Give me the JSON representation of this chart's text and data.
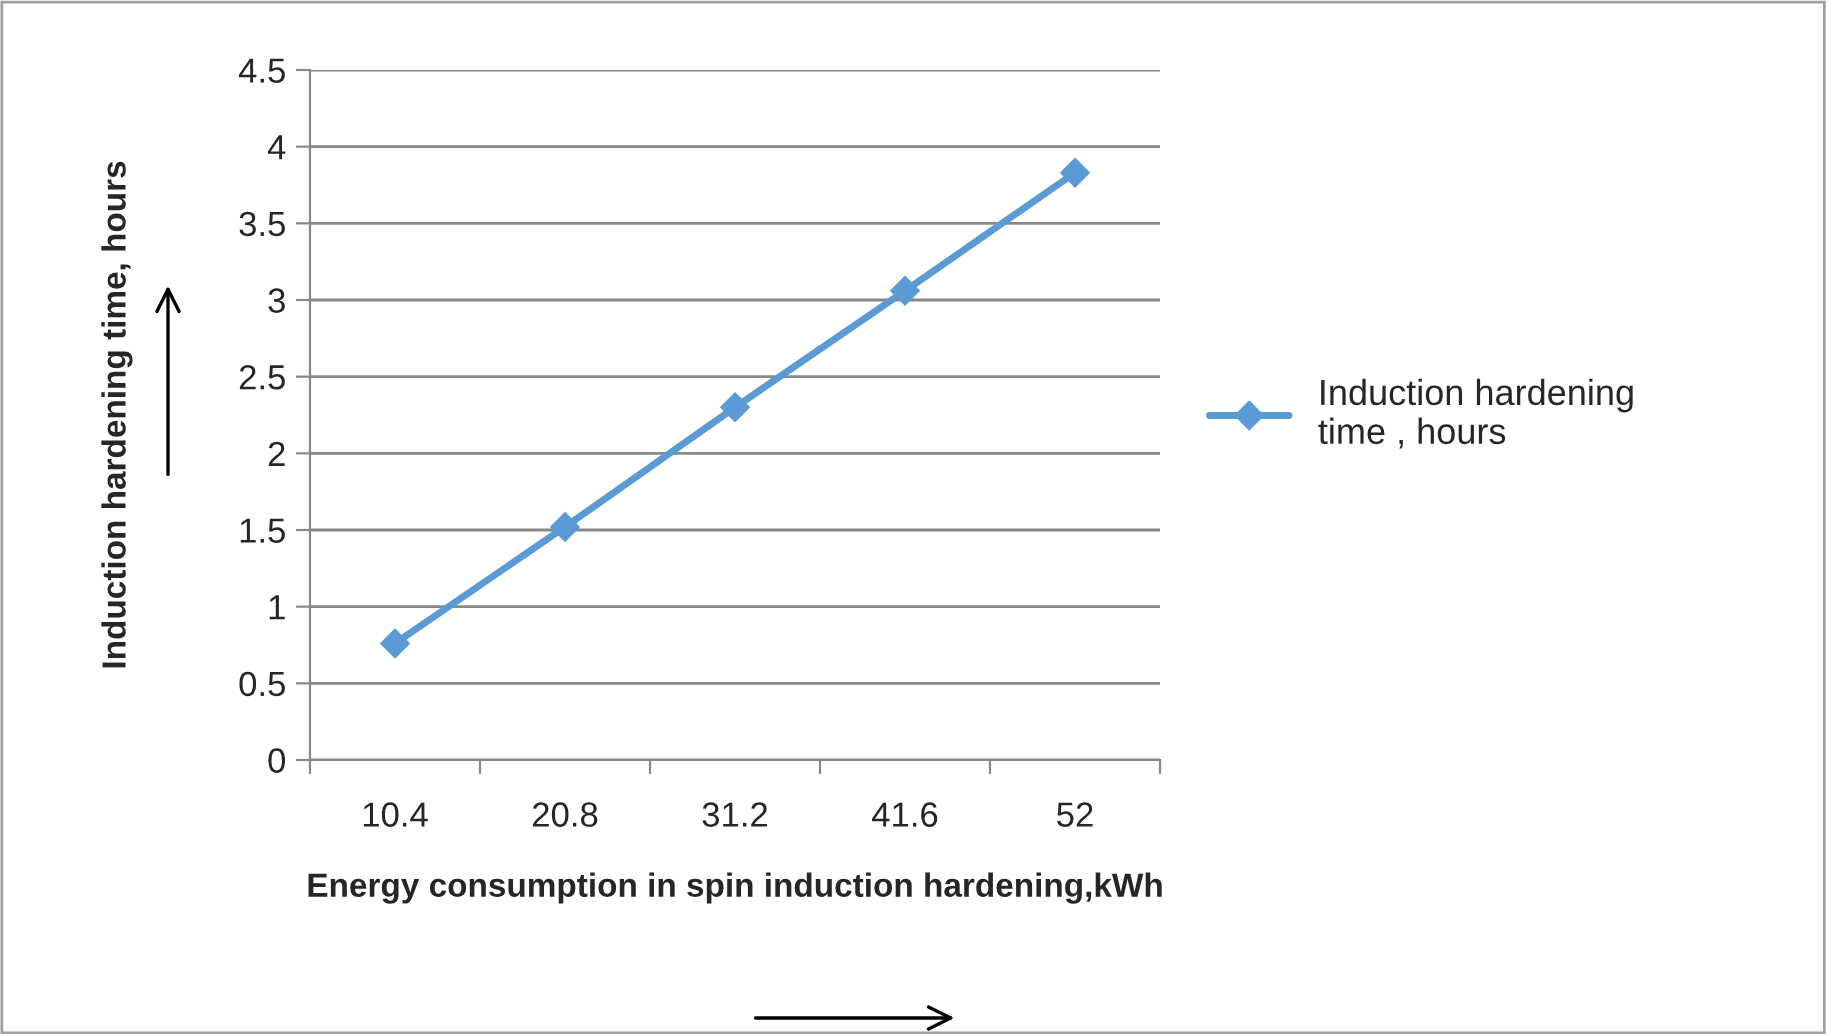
{
  "chart_data": {
    "type": "line",
    "xlabel": "Energy consumption in spin induction hardening,kWh",
    "ylabel": "Induction hardening time, hours",
    "categories": [
      "10.4",
      "20.8",
      "31.2",
      "41.6",
      "52"
    ],
    "series": [
      {
        "name": "Induction hardening\ntime , hours",
        "color": "#5b9bd5",
        "values": [
          0.76,
          1.52,
          2.3,
          3.06,
          3.83
        ]
      }
    ],
    "ylim": [
      0,
      4.5
    ],
    "yticks": [
      0,
      0.5,
      1,
      1.5,
      2,
      2.5,
      3,
      3.5,
      4,
      4.5
    ],
    "grid": "y",
    "legend": "right",
    "marker": "diamond",
    "line_style": "solid"
  }
}
